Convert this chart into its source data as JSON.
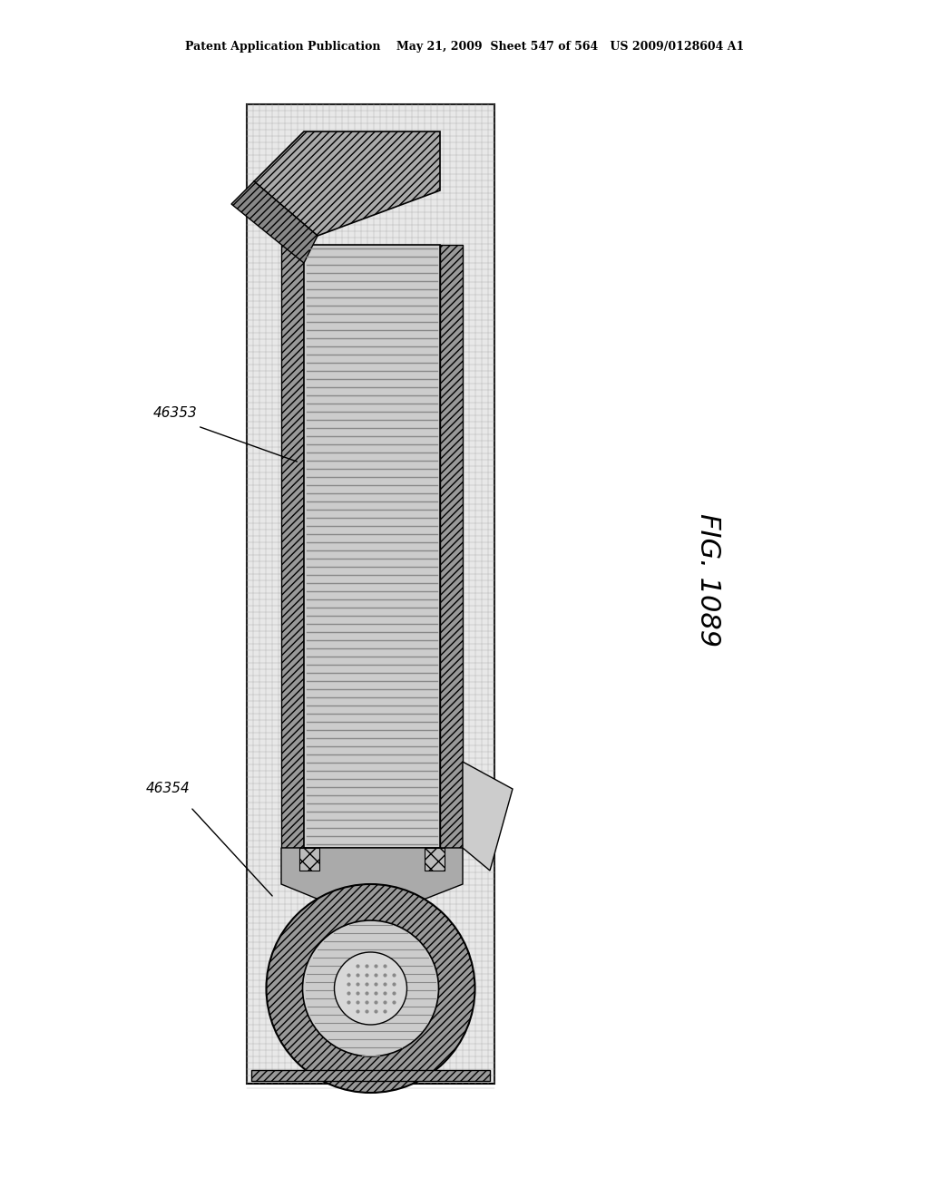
{
  "page_header": "Patent Application Publication    May 21, 2009  Sheet 547 of 564   US 2009/0128604 A1",
  "fig_label": "FIG. 1089",
  "label_46353": "46353",
  "label_46354": "46354",
  "bg_color": "#ffffff",
  "grid_color": "#c8c8c8",
  "hatch_color": "#555555",
  "dark_gray": "#404040",
  "mid_gray": "#888888",
  "light_gray": "#bbbbbb",
  "very_light_gray": "#d8d8d8"
}
